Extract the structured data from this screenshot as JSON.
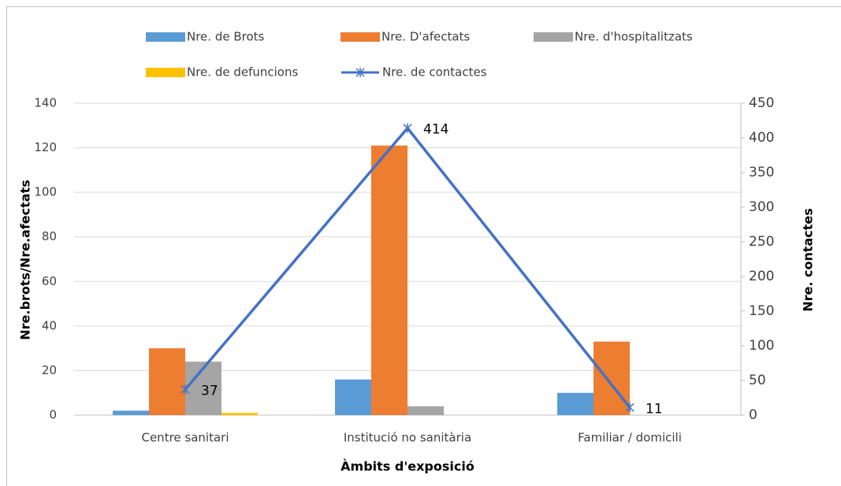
{
  "chart_data": {
    "type": "bar",
    "categories": [
      "Centre sanitari",
      "Institució no sanitària",
      "Familiar / domicili"
    ],
    "series": [
      {
        "name": "Nre. de Brots",
        "color": "#5b9bd5",
        "values": [
          2,
          16,
          10
        ]
      },
      {
        "name": "Nre. D'afectats",
        "color": "#ed7d31",
        "values": [
          30,
          121,
          33
        ]
      },
      {
        "name": "Nre. d'hospitalitzats",
        "color": "#a5a5a5",
        "values": [
          24,
          4,
          0
        ]
      },
      {
        "name": "Nre. de defuncions",
        "color": "#ffc000",
        "values": [
          1,
          0,
          0
        ]
      },
      {
        "name": "Nre. de contactes",
        "color": "#4472c4",
        "type": "line",
        "axis": "y2",
        "values": [
          37,
          414,
          11
        ]
      }
    ],
    "xlabel": "Àmbits d'exposició",
    "ylabel": "Nre.brots/Nre.afectats",
    "y2label": "Nre. contactes",
    "ylim": [
      0,
      140
    ],
    "yticks": [
      0,
      20,
      40,
      60,
      80,
      100,
      120,
      140
    ],
    "y2lim": [
      0,
      450
    ],
    "y2ticks": [
      0,
      50,
      100,
      150,
      200,
      250,
      300,
      350,
      400,
      450
    ],
    "grid": true,
    "legend": "top"
  }
}
